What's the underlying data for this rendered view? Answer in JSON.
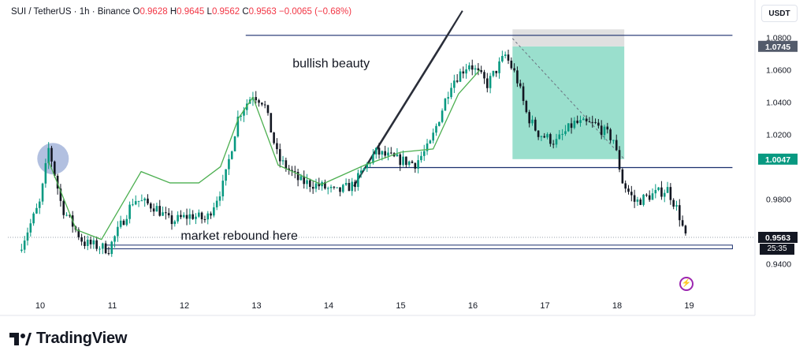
{
  "header": {
    "symbol": "SUI / TetherUS · 1h · Binance",
    "ohlc": [
      {
        "key": "O",
        "value": "0.9628"
      },
      {
        "key": "H",
        "value": "0.9645"
      },
      {
        "key": "L",
        "value": "0.9562"
      },
      {
        "key": "C",
        "value": "0.9563"
      }
    ],
    "change": "−0.0065 (−0.68%)",
    "unit": "USDT"
  },
  "countdown": "25:35",
  "branding": "TradingView",
  "colors": {
    "up": "#089981",
    "down": "#131722",
    "ma": "#4caf50",
    "level_line": "#1a2f6e",
    "target_zone": "#8fdcc8",
    "stop_zone": "#e0e0e0",
    "highlight_circle": "#9fb0d8"
  },
  "chart_data": {
    "type": "candlestick",
    "symbol": "SUI/USDT",
    "interval": "1h",
    "x_ticks": [
      "10",
      "11",
      "12",
      "13",
      "14",
      "15",
      "16",
      "17",
      "18",
      "19"
    ],
    "x_range_days": [
      9.6,
      19.6
    ],
    "ylim": [
      0.935,
      1.085
    ],
    "y_ticks": [
      {
        "label": "1.0800",
        "value": 1.08
      },
      {
        "label": "1.0600",
        "value": 1.06
      },
      {
        "label": "1.0400",
        "value": 1.04
      },
      {
        "label": "1.0200",
        "value": 1.02
      },
      {
        "label": "0.9800",
        "value": 0.98
      },
      {
        "label": "0.9400",
        "value": 0.94
      }
    ],
    "price_badges": [
      {
        "label": "1.0745",
        "value": 1.0745,
        "color": "#535b6b"
      },
      {
        "label": "1.0047",
        "value": 1.0047,
        "color": "#089981"
      },
      {
        "label": "0.9563",
        "value": 0.9563,
        "color": "#131722"
      }
    ],
    "price_path": [
      [
        9.7,
        0.948
      ],
      [
        10.0,
        0.978
      ],
      [
        10.12,
        1.012
      ],
      [
        10.3,
        0.975
      ],
      [
        10.6,
        0.953
      ],
      [
        10.95,
        0.949
      ],
      [
        11.3,
        0.98
      ],
      [
        11.6,
        0.975
      ],
      [
        11.8,
        0.966
      ],
      [
        12.1,
        0.97
      ],
      [
        12.3,
        0.967
      ],
      [
        12.55,
        0.99
      ],
      [
        12.75,
        1.032
      ],
      [
        12.95,
        1.045
      ],
      [
        13.1,
        1.04
      ],
      [
        13.3,
        1.005
      ],
      [
        13.6,
        0.991
      ],
      [
        13.9,
        0.988
      ],
      [
        14.1,
        0.984
      ],
      [
        14.35,
        0.989
      ],
      [
        14.65,
        1.009
      ],
      [
        14.9,
        1.005
      ],
      [
        15.2,
        1.002
      ],
      [
        15.4,
        1.013
      ],
      [
        15.7,
        1.052
      ],
      [
        15.95,
        1.064
      ],
      [
        16.2,
        1.051
      ],
      [
        16.45,
        1.069
      ],
      [
        16.6,
        1.056
      ],
      [
        16.75,
        1.032
      ],
      [
        16.9,
        1.021
      ],
      [
        17.15,
        1.015
      ],
      [
        17.4,
        1.027
      ],
      [
        17.7,
        1.026
      ],
      [
        17.95,
        1.017
      ],
      [
        18.08,
        0.99
      ],
      [
        18.25,
        0.978
      ],
      [
        18.45,
        0.982
      ],
      [
        18.7,
        0.986
      ],
      [
        18.85,
        0.972
      ],
      [
        18.95,
        0.956
      ]
    ],
    "ma_path": [
      [
        10.12,
        1.003
      ],
      [
        10.5,
        0.961
      ],
      [
        10.85,
        0.955
      ],
      [
        11.4,
        0.997
      ],
      [
        11.8,
        0.99
      ],
      [
        12.2,
        0.99
      ],
      [
        12.5,
        1.0
      ],
      [
        12.75,
        1.03
      ],
      [
        12.95,
        1.043
      ],
      [
        13.3,
        1.001
      ],
      [
        13.9,
        0.989
      ],
      [
        14.5,
        1.001
      ],
      [
        15.0,
        1.009
      ],
      [
        15.45,
        1.011
      ],
      [
        15.8,
        1.045
      ],
      [
        16.1,
        1.06
      ]
    ],
    "lines": [
      {
        "name": "resistance",
        "price": 1.0813,
        "from": 12.85,
        "to": 19.6
      },
      {
        "name": "support",
        "price": 0.9995,
        "from": 14.5,
        "to": 19.6
      }
    ],
    "zones": [
      {
        "name": "target",
        "from": 16.55,
        "to": 18.1,
        "top": 1.0745,
        "bottom": 1.0047
      },
      {
        "name": "stop",
        "from": 16.55,
        "to": 18.1,
        "top": 1.085,
        "bottom": 1.0745
      },
      {
        "name": "rebound",
        "from": 10.9,
        "to": 19.6,
        "top": 0.9515,
        "bottom": 0.9492
      }
    ],
    "channel": {
      "x1": 14.35,
      "x2": 15.55,
      "lower_start": 0.988,
      "lower_end": 1.074,
      "width": 0.025
    },
    "circle": {
      "x": 10.2,
      "y": 1.005
    },
    "annotations": [
      {
        "text": "bullish beauty",
        "x": 13.5,
        "y": 1.0615
      },
      {
        "text": "market rebound here",
        "x": 11.95,
        "y": 0.9548
      }
    ]
  }
}
